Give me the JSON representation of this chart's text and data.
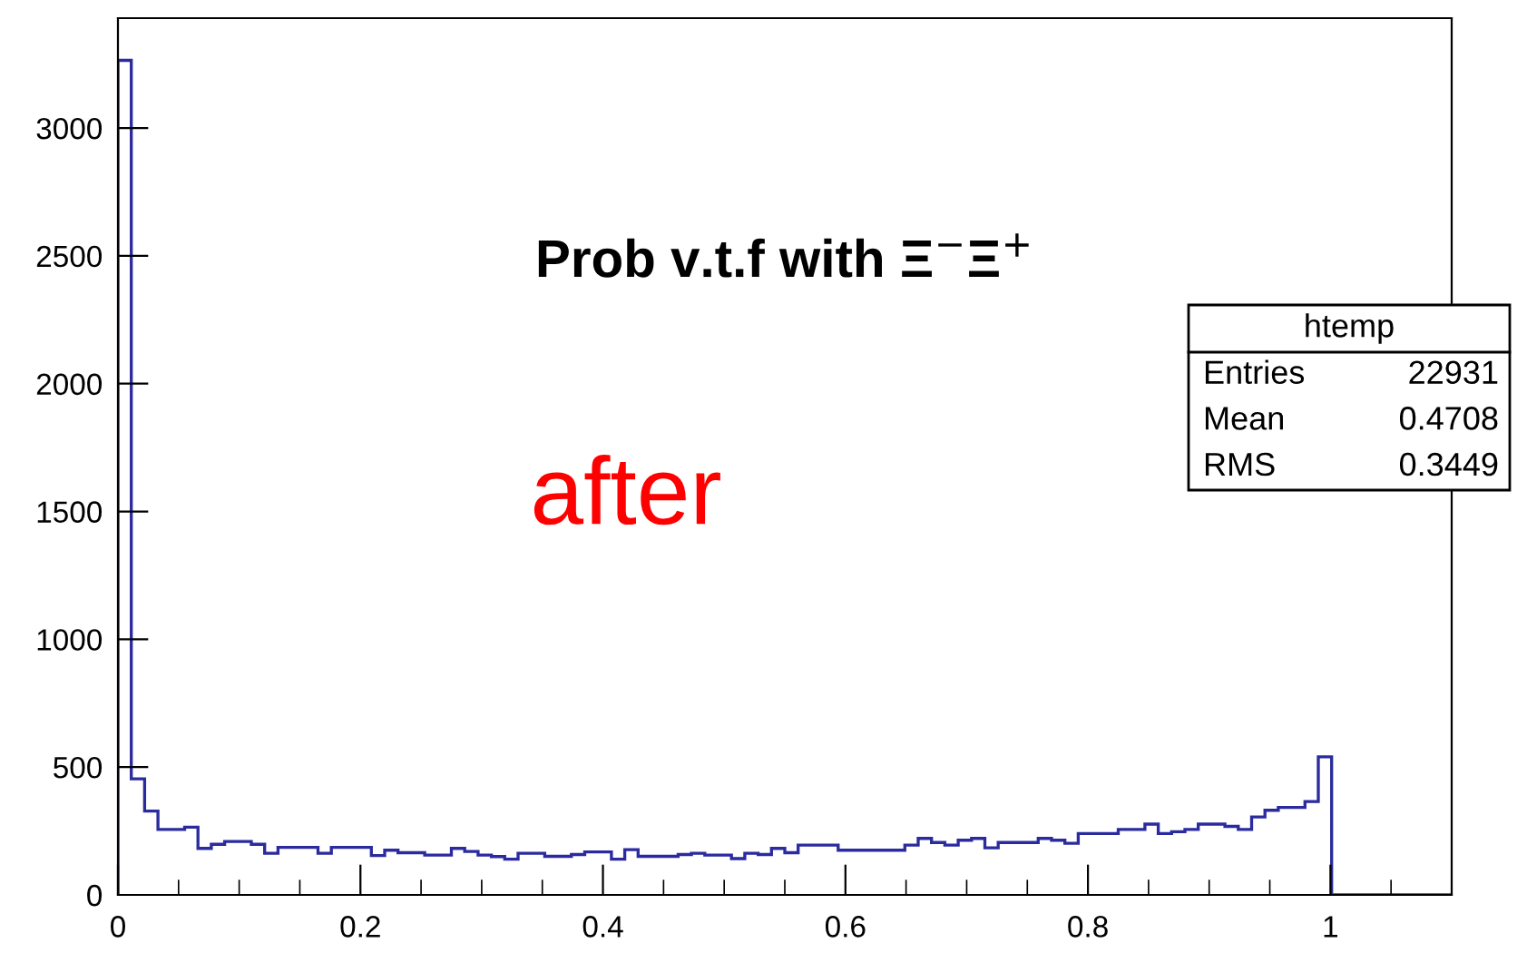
{
  "chart_data": {
    "type": "histogram",
    "title": "Prob v.t.f with Ξ$^{−}$Ξ$^{+}$",
    "bins": [
      0,
      0.011,
      0.022,
      0.033,
      0.044,
      0.055,
      0.066,
      0.077,
      0.088,
      0.099,
      0.11,
      0.121,
      0.132,
      0.143,
      0.154,
      0.165,
      0.176,
      0.187,
      0.198,
      0.209,
      0.22,
      0.231,
      0.242,
      0.253,
      0.264,
      0.275,
      0.286,
      0.297,
      0.308,
      0.319,
      0.33,
      0.341,
      0.352,
      0.363,
      0.374,
      0.385,
      0.396,
      0.407,
      0.418,
      0.429,
      0.44,
      0.451,
      0.462,
      0.473,
      0.484,
      0.495,
      0.506,
      0.517,
      0.528,
      0.539,
      0.55,
      0.561,
      0.572,
      0.583,
      0.594,
      0.605,
      0.616,
      0.627,
      0.638,
      0.649,
      0.66,
      0.671,
      0.682,
      0.693,
      0.704,
      0.715,
      0.726,
      0.737,
      0.748,
      0.759,
      0.77,
      0.781,
      0.792,
      0.803,
      0.814,
      0.825,
      0.836,
      0.847,
      0.858,
      0.869,
      0.88,
      0.891,
      0.902,
      0.913,
      0.924,
      0.935,
      0.946,
      0.957,
      0.968,
      0.979,
      0.99,
      1.001,
      1.012,
      1.023,
      1.034,
      1.045,
      1.056,
      1.067,
      1.078,
      1.089,
      1.1
    ],
    "values": [
      3265,
      454,
      328,
      256,
      256,
      265,
      182,
      198,
      209,
      209,
      198,
      163,
      186,
      186,
      186,
      163,
      186,
      186,
      186,
      154,
      175,
      165,
      165,
      156,
      156,
      182,
      170,
      156,
      150,
      140,
      163,
      163,
      151,
      151,
      158,
      168,
      168,
      140,
      177,
      151,
      151,
      151,
      158,
      163,
      156,
      156,
      142,
      163,
      158,
      182,
      165,
      195,
      195,
      195,
      175,
      175,
      175,
      175,
      175,
      195,
      221,
      205,
      195,
      214,
      221,
      184,
      205,
      205,
      205,
      221,
      214,
      202,
      240,
      240,
      240,
      256,
      256,
      277,
      240,
      247,
      256,
      277,
      277,
      268,
      256,
      305,
      331,
      342,
      342,
      365,
      540,
      0,
      0,
      0,
      0,
      0,
      0,
      0,
      0,
      0
    ],
    "color": "#2b2b9f",
    "xlim": [
      0,
      1.1
    ],
    "ylim": [
      0,
      3430
    ],
    "xticks": [
      0,
      0.2,
      0.4,
      0.6,
      0.8,
      1
    ],
    "yticks": [
      0,
      500,
      1000,
      1500,
      2000,
      2500,
      3000
    ],
    "annotations": [
      "after",
      "htemp",
      "Entries",
      "22931",
      "Mean",
      "0.4708",
      "RMS",
      "0.3449"
    ]
  }
}
